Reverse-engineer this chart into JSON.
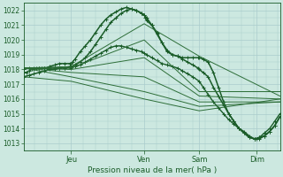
{
  "xlabel": "Pression niveau de la mer( hPa )",
  "bg_color": "#cce8e0",
  "grid_color": "#aacccc",
  "dark_green": "#1a5c28",
  "mid_green": "#2d7a3a",
  "ylim": [
    1012.5,
    1022.5
  ],
  "yticks": [
    1013,
    1014,
    1015,
    1016,
    1017,
    1018,
    1019,
    1020,
    1021,
    1022
  ],
  "xlim": [
    0.0,
    1.0
  ],
  "day_labels": [
    "Jeu",
    "Ven",
    "Sam",
    "Dim"
  ],
  "day_vline_x": [
    0.185,
    0.47,
    0.685,
    0.91
  ],
  "series": [
    {
      "marker": "+",
      "lw": 1.1,
      "color": "#1a5c28",
      "ms": 3.5,
      "x": [
        0.0,
        0.01,
        0.02,
        0.03,
        0.04,
        0.05,
        0.06,
        0.07,
        0.08,
        0.09,
        0.1,
        0.12,
        0.14,
        0.16,
        0.18,
        0.185,
        0.19,
        0.2,
        0.22,
        0.24,
        0.26,
        0.28,
        0.3,
        0.32,
        0.34,
        0.36,
        0.38,
        0.4,
        0.42,
        0.44,
        0.46,
        0.47,
        0.475,
        0.48,
        0.5,
        0.52,
        0.54,
        0.56,
        0.58,
        0.6,
        0.62,
        0.64,
        0.66,
        0.68,
        0.685,
        0.7,
        0.72,
        0.74,
        0.76,
        0.78,
        0.8,
        0.82,
        0.84,
        0.86,
        0.88,
        0.9,
        0.91,
        0.92,
        0.94,
        0.96,
        0.98,
        1.0
      ],
      "y": [
        1017.8,
        1017.8,
        1017.9,
        1018.0,
        1018.0,
        1018.1,
        1018.1,
        1018.1,
        1018.1,
        1018.1,
        1018.2,
        1018.3,
        1018.4,
        1018.4,
        1018.4,
        1018.4,
        1018.5,
        1018.7,
        1019.2,
        1019.6,
        1020.0,
        1020.5,
        1021.0,
        1021.4,
        1021.7,
        1021.9,
        1022.1,
        1022.2,
        1022.1,
        1022.0,
        1021.8,
        1021.7,
        1021.5,
        1021.3,
        1021.0,
        1020.5,
        1019.8,
        1019.2,
        1019.0,
        1018.9,
        1018.8,
        1018.8,
        1018.8,
        1018.8,
        1018.8,
        1018.7,
        1018.5,
        1017.8,
        1016.8,
        1015.8,
        1015.0,
        1014.5,
        1014.0,
        1013.7,
        1013.4,
        1013.3,
        1013.3,
        1013.4,
        1013.5,
        1013.8,
        1014.2,
        1014.8
      ]
    },
    {
      "marker": "+",
      "lw": 1.1,
      "color": "#1a5c28",
      "ms": 3.5,
      "x": [
        0.0,
        0.02,
        0.04,
        0.06,
        0.08,
        0.1,
        0.12,
        0.14,
        0.16,
        0.18,
        0.185,
        0.2,
        0.22,
        0.24,
        0.26,
        0.28,
        0.3,
        0.32,
        0.34,
        0.36,
        0.38,
        0.4,
        0.42,
        0.44,
        0.46,
        0.47,
        0.48,
        0.5,
        0.52,
        0.54,
        0.56,
        0.58,
        0.6,
        0.62,
        0.64,
        0.66,
        0.68,
        0.685,
        0.7,
        0.72,
        0.74,
        0.76,
        0.78,
        0.8,
        0.82,
        0.84,
        0.86,
        0.88,
        0.9,
        0.92,
        0.94,
        0.96,
        0.98,
        1.0
      ],
      "y": [
        1017.5,
        1017.6,
        1017.7,
        1017.8,
        1017.9,
        1018.0,
        1018.0,
        1018.1,
        1018.1,
        1018.2,
        1018.2,
        1018.3,
        1018.5,
        1018.8,
        1019.2,
        1019.7,
        1020.2,
        1020.7,
        1021.2,
        1021.5,
        1021.8,
        1022.0,
        1022.1,
        1022.0,
        1021.8,
        1021.7,
        1021.5,
        1021.0,
        1020.4,
        1019.8,
        1019.3,
        1019.0,
        1018.9,
        1018.7,
        1018.5,
        1018.3,
        1018.1,
        1018.0,
        1017.8,
        1017.5,
        1016.8,
        1016.2,
        1015.6,
        1015.0,
        1014.5,
        1014.0,
        1013.7,
        1013.4,
        1013.3,
        1013.3,
        1013.5,
        1013.8,
        1014.2,
        1014.8
      ]
    },
    {
      "marker": "+",
      "lw": 1.0,
      "color": "#1a5c28",
      "ms": 3.0,
      "x": [
        0.0,
        0.02,
        0.04,
        0.06,
        0.08,
        0.1,
        0.12,
        0.14,
        0.16,
        0.185,
        0.2,
        0.22,
        0.24,
        0.26,
        0.28,
        0.3,
        0.32,
        0.34,
        0.36,
        0.38,
        0.4,
        0.42,
        0.44,
        0.46,
        0.47,
        0.48,
        0.5,
        0.52,
        0.54,
        0.56,
        0.58,
        0.6,
        0.62,
        0.64,
        0.66,
        0.685,
        0.7,
        0.72,
        0.74,
        0.76,
        0.78,
        0.8,
        0.82,
        0.84,
        0.86,
        0.88,
        0.9,
        0.92,
        0.94,
        0.96,
        0.98,
        1.0
      ],
      "y": [
        1018.0,
        1018.1,
        1018.1,
        1018.1,
        1018.1,
        1018.1,
        1018.1,
        1018.1,
        1018.1,
        1018.1,
        1018.2,
        1018.3,
        1018.5,
        1018.7,
        1018.9,
        1019.1,
        1019.3,
        1019.5,
        1019.6,
        1019.6,
        1019.5,
        1019.4,
        1019.3,
        1019.2,
        1019.1,
        1019.0,
        1018.8,
        1018.6,
        1018.4,
        1018.3,
        1018.2,
        1018.1,
        1017.9,
        1017.7,
        1017.5,
        1017.2,
        1016.8,
        1016.3,
        1015.8,
        1015.4,
        1015.0,
        1014.6,
        1014.3,
        1014.0,
        1013.8,
        1013.5,
        1013.3,
        1013.4,
        1013.7,
        1014.0,
        1014.5,
        1015.0
      ]
    },
    {
      "marker": null,
      "lw": 0.7,
      "color": "#2d6e38",
      "ms": 0,
      "x": [
        0.0,
        0.185,
        0.47,
        0.685,
        1.0
      ],
      "y": [
        1018.1,
        1018.2,
        1021.1,
        1018.9,
        1016.2
      ]
    },
    {
      "marker": null,
      "lw": 0.7,
      "color": "#2d6e38",
      "ms": 0,
      "x": [
        0.0,
        0.185,
        0.47,
        0.685,
        1.0
      ],
      "y": [
        1018.1,
        1018.1,
        1020.0,
        1016.5,
        1016.5
      ]
    },
    {
      "marker": null,
      "lw": 0.7,
      "color": "#2d6e38",
      "ms": 0,
      "x": [
        0.0,
        0.185,
        0.47,
        0.685,
        1.0
      ],
      "y": [
        1018.1,
        1018.0,
        1018.8,
        1016.2,
        1016.0
      ]
    },
    {
      "marker": null,
      "lw": 0.7,
      "color": "#2d6e38",
      "ms": 0,
      "x": [
        0.0,
        0.185,
        0.47,
        0.685,
        1.0
      ],
      "y": [
        1018.1,
        1017.8,
        1017.5,
        1015.8,
        1015.8
      ]
    },
    {
      "marker": null,
      "lw": 0.7,
      "color": "#2d6e38",
      "ms": 0,
      "x": [
        0.0,
        0.185,
        0.47,
        0.685,
        1.0
      ],
      "y": [
        1018.1,
        1017.5,
        1016.5,
        1015.5,
        1015.8
      ]
    },
    {
      "marker": null,
      "lw": 0.7,
      "color": "#2d6e38",
      "ms": 0,
      "x": [
        0.0,
        0.185,
        0.47,
        0.685,
        1.0
      ],
      "y": [
        1017.5,
        1017.2,
        1016.0,
        1015.2,
        1016.0
      ]
    }
  ]
}
